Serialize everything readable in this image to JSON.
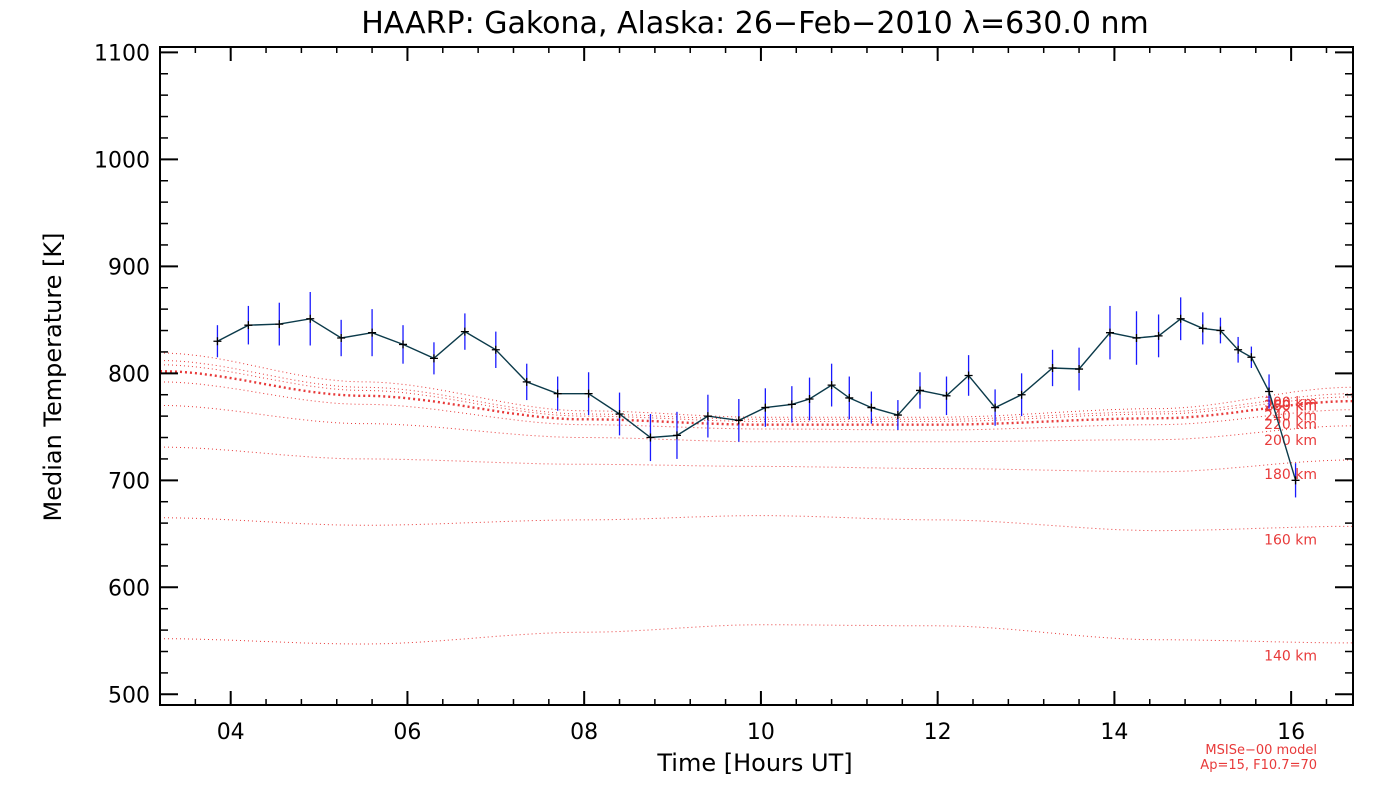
{
  "chart_data": {
    "type": "line",
    "title": "HAARP: Gakona,  Alaska: 26−Feb−2010 λ=630.0 nm",
    "xlabel": "Time [Hours UT]",
    "ylabel": "Median Temperature [K]",
    "xlim": [
      3.2,
      16.7
    ],
    "ylim": [
      490,
      1105
    ],
    "x_ticks": [
      4,
      6,
      8,
      10,
      12,
      14,
      16
    ],
    "x_tick_labels": [
      "04",
      "06",
      "08",
      "10",
      "12",
      "14",
      "16"
    ],
    "y_ticks": [
      500,
      600,
      700,
      800,
      900,
      1000,
      1100
    ],
    "y_tick_labels": [
      "500",
      "600",
      "700",
      "800",
      "900",
      "1000",
      "1100"
    ],
    "grid": false,
    "series": [
      {
        "color": "#000000",
        "errorbar_color": "#1a1aff",
        "x": [
          3.85,
          4.2,
          4.55,
          4.9,
          5.25,
          5.6,
          5.95,
          6.3,
          6.65,
          7.0,
          7.35,
          7.7,
          8.05,
          8.4,
          8.75,
          9.05,
          9.4,
          9.75,
          10.05,
          10.35,
          10.55,
          10.8,
          11.0,
          11.25,
          11.55,
          11.8,
          12.1,
          12.35,
          12.65,
          12.95,
          13.3,
          13.6,
          13.95,
          14.25,
          14.5,
          14.75,
          15.0,
          15.2,
          15.4,
          15.55,
          15.75,
          16.05
        ],
        "y": [
          830,
          845,
          846,
          851,
          833,
          838,
          827,
          814,
          839,
          822,
          792,
          781,
          781,
          762,
          740,
          742,
          760,
          756,
          768,
          771,
          776,
          789,
          777,
          768,
          761,
          784,
          779,
          798,
          768,
          780,
          805,
          804,
          838,
          833,
          835,
          851,
          842,
          840,
          822,
          815,
          783,
          700
        ],
        "err": [
          15,
          18,
          20,
          25,
          17,
          22,
          18,
          15,
          17,
          17,
          17,
          16,
          20,
          20,
          22,
          22,
          20,
          20,
          18,
          17,
          20,
          20,
          20,
          15,
          14,
          17,
          18,
          19,
          17,
          20,
          17,
          20,
          25,
          25,
          20,
          20,
          15,
          12,
          12,
          10,
          16,
          16
        ]
      }
    ],
    "model_curves": [
      {
        "label": "140 km",
        "x": [
          3.2,
          5.5,
          8.0,
          10.0,
          12.0,
          14.5,
          16.7
        ],
        "y": [
          552,
          547,
          558,
          565,
          564,
          551,
          548
        ]
      },
      {
        "label": "160 km",
        "x": [
          3.2,
          5.5,
          8.0,
          10.0,
          12.0,
          14.5,
          16.7
        ],
        "y": [
          665,
          658,
          663,
          667,
          663,
          653,
          657
        ]
      },
      {
        "label": "180 km",
        "x": [
          3.2,
          5.5,
          8.0,
          10.0,
          12.0,
          14.5,
          16.7
        ],
        "y": [
          731,
          720,
          715,
          713,
          711,
          708,
          719
        ]
      },
      {
        "label": "200 km",
        "x": [
          3.2,
          5.5,
          8.0,
          10.0,
          12.0,
          14.5,
          16.7
        ],
        "y": [
          770,
          753,
          740,
          736,
          736,
          738,
          751
        ]
      },
      {
        "label": "220 km",
        "x": [
          3.2,
          5.5,
          8.0,
          10.0,
          12.0,
          14.5,
          16.7
        ],
        "y": [
          792,
          771,
          752,
          748,
          747,
          752,
          766
        ]
      },
      {
        "label": "240 km",
        "x": [
          3.2,
          5.5,
          8.0,
          10.0,
          12.0,
          14.5,
          16.7
        ],
        "y": [
          802,
          779,
          757,
          752,
          752,
          758,
          774
        ]
      },
      {
        "label": "260 km",
        "x": [
          3.2,
          5.5,
          8.0,
          10.0,
          12.0,
          14.5,
          16.7
        ],
        "y": [
          808,
          784,
          760,
          755,
          755,
          762,
          778
        ]
      },
      {
        "label": "280 km",
        "x": [
          3.2,
          5.5,
          8.0,
          10.0,
          12.0,
          14.5,
          16.7
        ],
        "y": [
          812,
          787,
          762,
          757,
          757,
          764,
          781
        ]
      },
      {
        "label": "300 km",
        "x": [
          3.2,
          5.5,
          8.0,
          10.0,
          12.0,
          14.5,
          16.7
        ],
        "y": [
          819,
          792,
          765,
          759,
          759,
          767,
          787
        ]
      }
    ],
    "model_color": "#e83a3a",
    "model_notes": [
      "MSISe−00 model",
      "Ap=15, F10.7=70"
    ]
  }
}
